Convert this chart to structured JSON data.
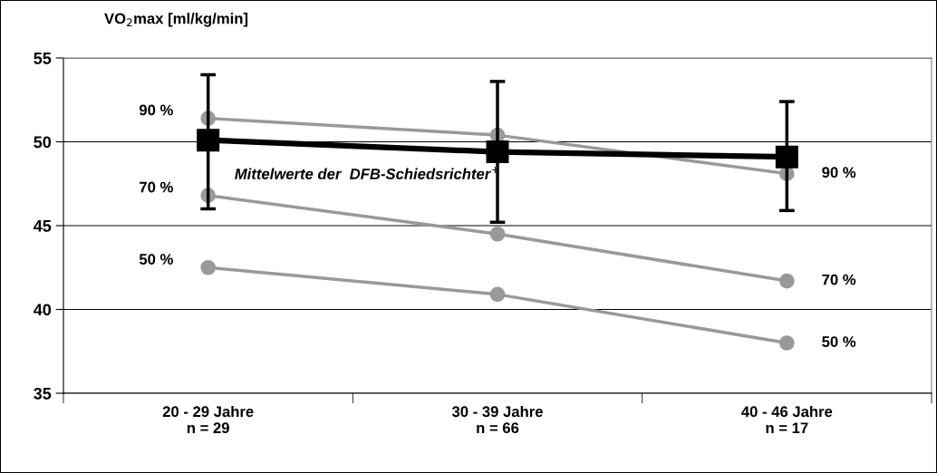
{
  "chart_data": {
    "type": "line",
    "ylabel": "VO$_{2}$max [ml/kg/min]",
    "categories": [
      "20 - 29 Jahre\nn = 29",
      "30 - 39 Jahre\nn = 66",
      "40 - 46 Jahre\nn = 17"
    ],
    "series": [
      {
        "name": "90 %",
        "color": "#999999",
        "marker": "circle",
        "values": [
          51.4,
          50.4,
          48.1
        ]
      },
      {
        "name": "70 %",
        "color": "#999999",
        "marker": "circle",
        "values": [
          46.8,
          44.5,
          41.7
        ]
      },
      {
        "name": "50 %",
        "color": "#999999",
        "marker": "circle",
        "values": [
          42.5,
          40.9,
          38.0
        ]
      },
      {
        "name": "Mittelwerte der  DFB-Schiedsrichter$^{+}$",
        "color": "#000000",
        "marker": "square",
        "values": [
          50.1,
          49.4,
          49.1
        ],
        "errors": [
          [
            46.0,
            54.0
          ],
          [
            45.2,
            53.6
          ],
          [
            45.9,
            52.4
          ]
        ]
      }
    ],
    "ylim": [
      35,
      55
    ],
    "yticks": [
      35,
      40,
      45,
      50,
      55
    ],
    "grid": "y",
    "legend": false
  }
}
